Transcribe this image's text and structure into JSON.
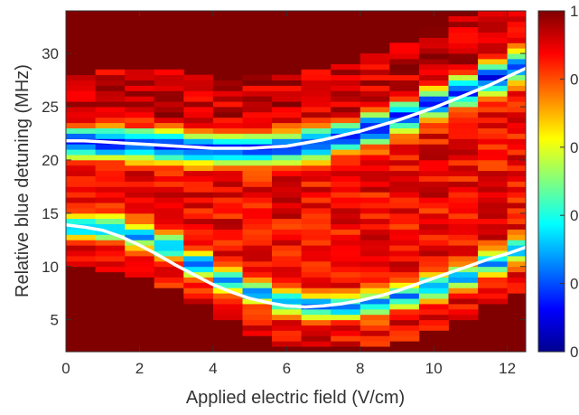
{
  "chart_data": {
    "type": "heatmap",
    "title": "",
    "xlabel": "Applied electric field (V/cm)",
    "ylabel": "Relative blue detuning (MHz)",
    "xlim": [
      0,
      12.5
    ],
    "ylim": [
      2,
      34
    ],
    "x_ticks": [
      0,
      2,
      4,
      6,
      8,
      10,
      12
    ],
    "y_ticks": [
      5,
      10,
      15,
      20,
      25,
      30
    ],
    "colorbar": {
      "range": [
        0,
        1
      ],
      "tick_labels": [
        "0",
        "0",
        "0",
        "0",
        "0",
        "1"
      ],
      "colormap": "jet"
    },
    "columns_field_v_per_cm": [
      0,
      0.8,
      1.6,
      2.4,
      3.2,
      4.0,
      4.8,
      5.6,
      6.4,
      7.2,
      8.0,
      8.8,
      9.6,
      10.4,
      11.2,
      12.0
    ],
    "detuning_bins_mhz": {
      "from": 2,
      "to": 34,
      "step": 0.5
    },
    "resonances": [
      {
        "label": "",
        "upper_branch_center_mhz": [
          21.7,
          21.6,
          21.5,
          21.3,
          21.1,
          21.0,
          21.0,
          21.2,
          21.6,
          22.2,
          23.0,
          24.1,
          25.3,
          26.5,
          27.7,
          28.8
        ]
      },
      {
        "label": "",
        "lower_branch_center_mhz": [
          13.8,
          13.6,
          12.9,
          11.8,
          10.3,
          8.8,
          7.6,
          6.7,
          6.3,
          6.3,
          6.6,
          7.2,
          8.1,
          9.1,
          10.3,
          11.5
        ]
      }
    ],
    "fit_curves": [
      {
        "x": [
          0,
          0.5,
          1,
          1.5,
          2,
          2.5,
          3,
          3.5,
          4,
          4.5,
          5,
          5.5,
          6,
          6.5,
          7,
          7.5,
          8,
          8.5,
          9,
          9.5,
          10,
          10.5,
          11,
          11.5,
          12,
          12.5
        ],
        "y": [
          21.8,
          21.8,
          21.7,
          21.6,
          21.5,
          21.4,
          21.3,
          21.2,
          21.1,
          21.1,
          21.1,
          21.2,
          21.3,
          21.6,
          21.9,
          22.3,
          22.7,
          23.2,
          23.7,
          24.3,
          24.9,
          25.6,
          26.3,
          27.0,
          27.8,
          28.6
        ]
      },
      {
        "x": [
          0,
          0.5,
          1,
          1.5,
          2,
          2.5,
          3,
          3.5,
          4,
          4.5,
          5,
          5.5,
          6,
          6.5,
          7,
          7.5,
          8,
          8.5,
          9,
          9.5,
          10,
          10.5,
          11,
          11.5,
          12,
          12.5
        ],
        "y": [
          13.9,
          13.7,
          13.4,
          12.8,
          12.0,
          11.1,
          10.1,
          9.2,
          8.3,
          7.6,
          7.0,
          6.6,
          6.3,
          6.2,
          6.3,
          6.5,
          6.8,
          7.2,
          7.7,
          8.3,
          8.9,
          9.5,
          10.1,
          10.7,
          11.2,
          11.8
        ]
      }
    ]
  }
}
